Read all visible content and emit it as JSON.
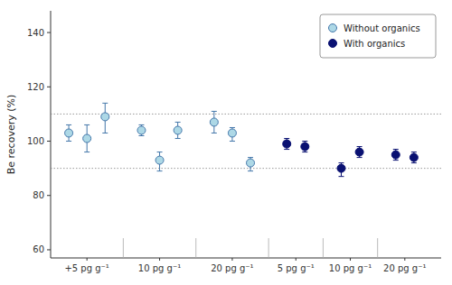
{
  "chart_data": {
    "type": "scatter",
    "ylabel": "Be recovery (%)",
    "xlim": [
      0,
      21.5
    ],
    "xticks": [
      {
        "value": 2,
        "label": "+5 pg g⁻¹"
      },
      {
        "value": 6,
        "label": "10 pg g⁻¹"
      },
      {
        "value": 10,
        "label": "20 pg g⁻¹"
      },
      {
        "value": 13.5,
        "label": "5 pg g⁻¹"
      },
      {
        "value": 16.5,
        "label": "10 pg g⁻¹"
      },
      {
        "value": 19.5,
        "label": "20 pg g⁻¹"
      }
    ],
    "ylim": [
      57,
      148
    ],
    "yticks": [
      60,
      80,
      100,
      120,
      140
    ],
    "hlines": [
      110,
      90
    ],
    "vlines": [
      4.0,
      8.0,
      12.0,
      15.0,
      18.0
    ],
    "grid": false,
    "legend": "upper-right",
    "series": [
      {
        "name": "Without organics",
        "color": "#add8e6",
        "edge_color": "#4477aa",
        "marker": "circle",
        "x": [
          1,
          2,
          3,
          5,
          6,
          7,
          9,
          10,
          11
        ],
        "values": [
          103,
          101,
          109,
          104,
          93,
          104,
          107,
          103,
          92
        ],
        "yerr_lo": [
          3,
          5,
          6,
          2,
          4,
          3,
          4,
          3,
          3
        ],
        "yerr_hi": [
          3,
          5,
          5,
          2,
          3,
          3,
          4,
          2,
          2
        ]
      },
      {
        "name": "With organics",
        "color": "#0a1172",
        "edge_color": "#0a1172",
        "marker": "circle",
        "x": [
          13,
          14,
          16,
          17,
          19,
          20
        ],
        "values": [
          99,
          98,
          90,
          96,
          95,
          94
        ],
        "yerr_lo": [
          2,
          2,
          3,
          2,
          2,
          2
        ],
        "yerr_hi": [
          2,
          2,
          2,
          2,
          2,
          2
        ]
      }
    ]
  }
}
